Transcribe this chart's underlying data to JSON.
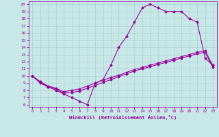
{
  "xlabel": "Windchill (Refroidissement éolien,°C)",
  "bg_color": "#c8e8e8",
  "line_color": "#990099",
  "grid_color": "#aacfcf",
  "xlim": [
    -0.5,
    23.5
  ],
  "ylim": [
    5.7,
    20.4
  ],
  "xticks": [
    0,
    1,
    2,
    3,
    4,
    5,
    6,
    7,
    8,
    9,
    10,
    11,
    12,
    13,
    14,
    15,
    16,
    17,
    18,
    19,
    20,
    21,
    22,
    23
  ],
  "yticks": [
    6,
    7,
    8,
    9,
    10,
    11,
    12,
    13,
    14,
    15,
    16,
    17,
    18,
    19,
    20
  ],
  "line1_x": [
    0,
    1,
    2,
    3,
    4,
    5,
    6,
    7,
    8,
    9,
    10,
    11,
    12,
    13,
    14,
    15,
    16,
    17,
    18,
    19,
    20,
    21,
    22,
    23
  ],
  "line1_y": [
    10,
    9,
    8.5,
    8,
    7.5,
    7,
    6.5,
    6,
    9,
    9.5,
    11.5,
    14,
    15.5,
    17.5,
    19.5,
    20,
    19.5,
    19,
    19,
    19,
    18,
    17.5,
    12.5,
    11.5
  ],
  "line2_x": [
    0,
    1,
    2,
    3,
    4,
    5,
    6,
    7,
    8,
    9,
    10,
    11,
    12,
    13,
    14,
    15,
    16,
    17,
    18,
    19,
    20,
    21,
    22,
    23
  ],
  "line2_y": [
    10,
    9.2,
    8.6,
    8.3,
    7.8,
    8.0,
    8.2,
    8.6,
    9.0,
    9.4,
    9.8,
    10.1,
    10.5,
    10.9,
    11.2,
    11.5,
    11.8,
    12.1,
    12.4,
    12.7,
    13.0,
    13.3,
    13.5,
    11.5
  ],
  "line3_x": [
    0,
    1,
    2,
    3,
    4,
    5,
    6,
    7,
    8,
    9,
    10,
    11,
    12,
    13,
    14,
    15,
    16,
    17,
    18,
    19,
    20,
    21,
    22,
    23
  ],
  "line3_y": [
    10,
    9.2,
    8.5,
    8.2,
    7.6,
    7.7,
    7.9,
    8.3,
    8.7,
    9.1,
    9.5,
    9.9,
    10.3,
    10.7,
    11.0,
    11.3,
    11.6,
    11.9,
    12.2,
    12.5,
    12.8,
    13.1,
    13.3,
    11.2
  ]
}
